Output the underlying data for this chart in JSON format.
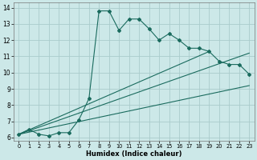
{
  "xlabel": "Humidex (Indice chaleur)",
  "background_color": "#cce8e8",
  "grid_color": "#aacccc",
  "line_color": "#1a6b5e",
  "xlim_min": -0.5,
  "xlim_max": 23.5,
  "ylim_min": 5.8,
  "ylim_max": 14.3,
  "xticks": [
    0,
    1,
    2,
    3,
    4,
    5,
    6,
    7,
    8,
    9,
    10,
    11,
    12,
    13,
    14,
    15,
    16,
    17,
    18,
    19,
    20,
    21,
    22,
    23
  ],
  "yticks": [
    6,
    7,
    8,
    9,
    10,
    11,
    12,
    13,
    14
  ],
  "main_x": [
    0,
    1,
    2,
    3,
    4,
    5,
    6,
    7,
    8,
    9,
    10,
    11,
    12,
    13,
    14,
    15,
    16,
    17,
    18,
    19,
    20,
    21,
    22,
    23
  ],
  "main_y": [
    6.2,
    6.5,
    6.2,
    6.1,
    6.3,
    6.3,
    7.1,
    8.4,
    13.8,
    13.8,
    12.6,
    13.3,
    13.3,
    12.7,
    12.0,
    12.4,
    12.0,
    11.5,
    11.5,
    11.3,
    10.7,
    10.5,
    10.5,
    9.9
  ],
  "line1_x": [
    0,
    23
  ],
  "line1_y": [
    6.2,
    9.2
  ],
  "line2_x": [
    0,
    23
  ],
  "line2_y": [
    6.2,
    11.2
  ],
  "line3_x": [
    0,
    19
  ],
  "line3_y": [
    6.2,
    11.3
  ]
}
